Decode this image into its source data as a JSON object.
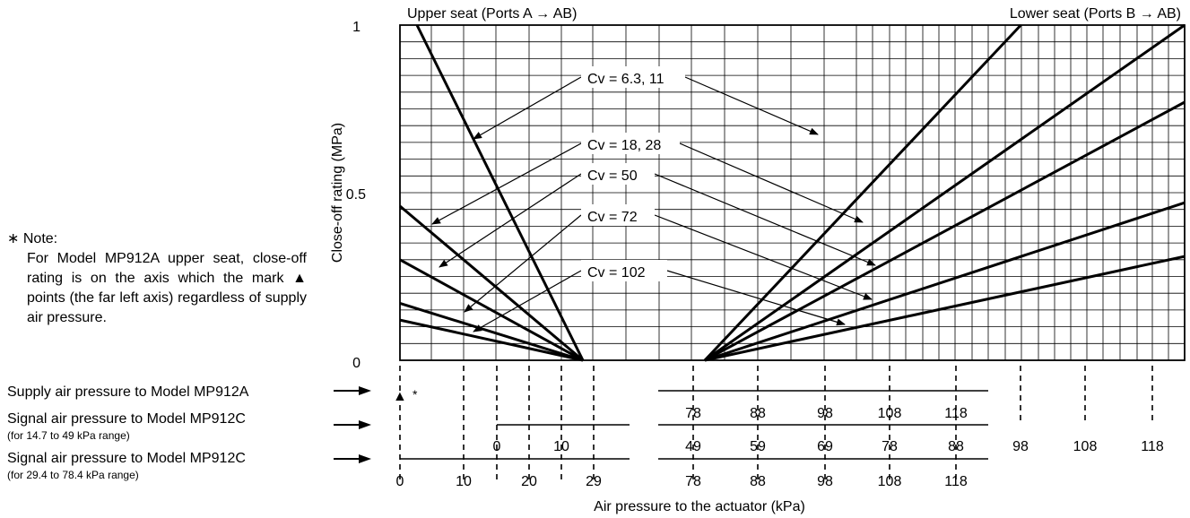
{
  "chart_data": {
    "type": "line",
    "title": "",
    "xlabel": "Air pressure to the actuator (kPa)",
    "ylabel": "Close-off rating (MPa)",
    "ylim": [
      0,
      1
    ],
    "yticks": [
      "0",
      "0.5",
      "1"
    ],
    "xlim": [
      0,
      118
    ],
    "grid": true,
    "panels": {
      "upper_seat": "Upper seat (Ports A → AB)",
      "lower_seat": "Lower seat (Ports B → AB)"
    },
    "series": [
      {
        "name": "Cv = 6.3, 11",
        "seat": "upper",
        "x": [
          2.7,
          29
        ],
        "y": [
          1.0,
          0
        ]
      },
      {
        "name": "Cv = 18, 28",
        "seat": "upper",
        "x": [
          0,
          29
        ],
        "y": [
          0.46,
          0
        ]
      },
      {
        "name": "Cv = 50",
        "seat": "upper",
        "x": [
          0,
          29
        ],
        "y": [
          0.3,
          0
        ]
      },
      {
        "name": "Cv = 72",
        "seat": "upper",
        "x": [
          0,
          29
        ],
        "y": [
          0.17,
          0
        ]
      },
      {
        "name": "Cv = 102",
        "seat": "upper",
        "x": [
          0,
          29
        ],
        "y": [
          0.12,
          0
        ]
      },
      {
        "name": "Cv = 6.3, 11",
        "seat": "lower",
        "x": [
          74,
          104.3
        ],
        "y": [
          0,
          1.0
        ]
      },
      {
        "name": "Cv = 18, 28",
        "seat": "lower",
        "x": [
          74,
          120
        ],
        "y": [
          0,
          1.0
        ]
      },
      {
        "name": "Cv = 50",
        "seat": "lower",
        "x": [
          74,
          120
        ],
        "y": [
          0,
          0.77
        ]
      },
      {
        "name": "Cv = 72",
        "seat": "lower",
        "x": [
          74,
          120
        ],
        "y": [
          0,
          0.47
        ]
      },
      {
        "name": "Cv = 102",
        "seat": "lower",
        "x": [
          74,
          120
        ],
        "y": [
          0,
          0.31
        ]
      }
    ],
    "annotations": [
      "Cv = 6.3, 11",
      "Cv = 18, 28",
      "Cv = 50",
      "Cv = 72",
      "Cv = 102"
    ],
    "scales": {
      "supply_label": "Supply air pressure to Model MP912A",
      "supply_marker": "▲",
      "supply_star": "*",
      "supply_ticks": [
        "78",
        "88",
        "98",
        "108",
        "118"
      ],
      "signal1_label": "Signal air pressure to Model MP912C",
      "signal1_sub": "(for 14.7 to 49 kPa range)",
      "signal1_left_ticks": [
        "0",
        "10"
      ],
      "signal1_right_ticks": [
        "49",
        "59",
        "69",
        "78",
        "88",
        "98",
        "108",
        "118"
      ],
      "signal2_label": "Signal air pressure to Model MP912C",
      "signal2_sub": "(for 29.4 to 78.4 kPa range)",
      "signal2_left_ticks": [
        "0",
        "10",
        "20",
        "29"
      ],
      "signal2_right_ticks": [
        "78",
        "88",
        "98",
        "108",
        "118"
      ]
    }
  },
  "note": {
    "head": "Note:",
    "asterisk": "∗",
    "body": "For Model MP912A upper seat, close-off rating is on the axis which the mark ▲ points (the far left axis) regardless of supply air pressure."
  }
}
